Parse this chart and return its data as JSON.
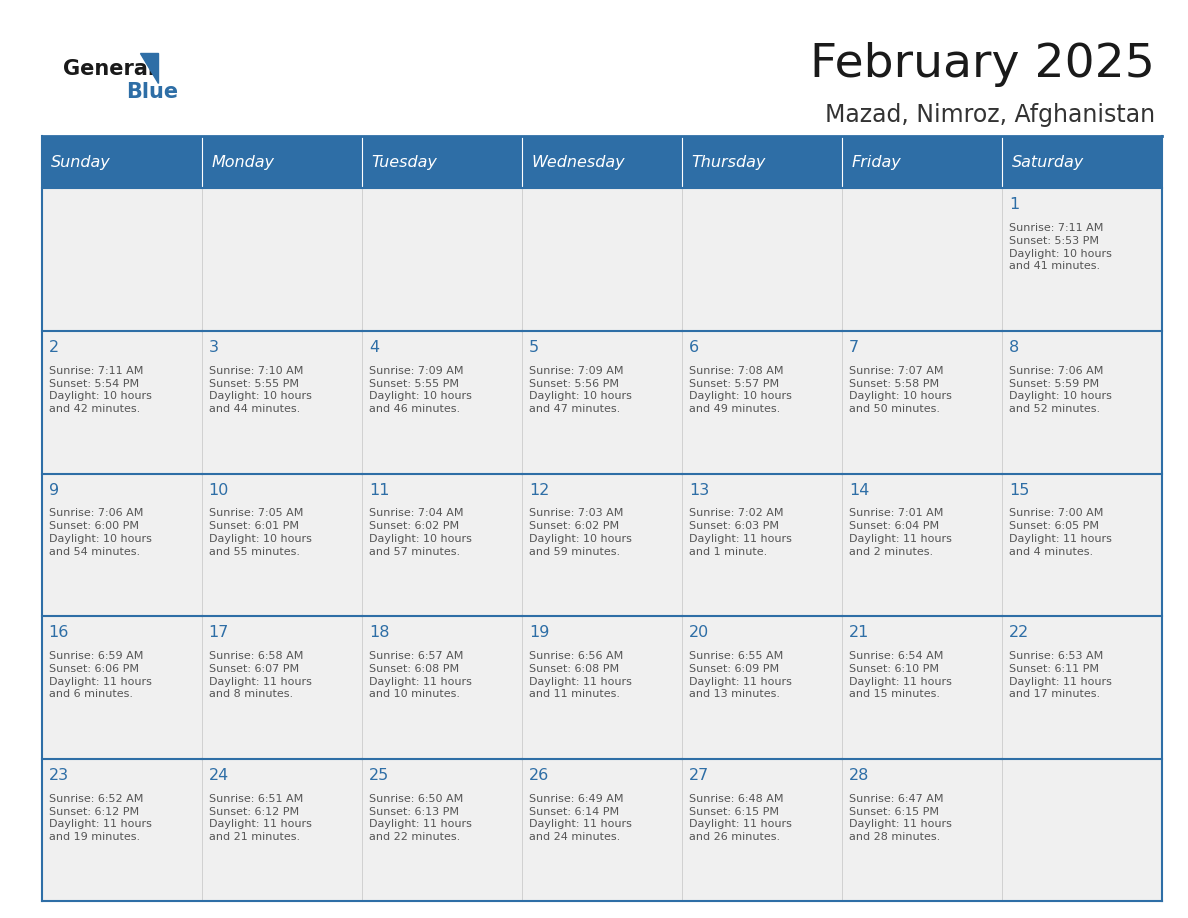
{
  "title": "February 2025",
  "subtitle": "Mazad, Nimroz, Afghanistan",
  "header_color": "#2E6EA6",
  "header_text_color": "#FFFFFF",
  "border_color": "#2E6EA6",
  "cell_bg_even": "#FFFFFF",
  "cell_bg_odd": "#F2F2F2",
  "title_color": "#1A1A1A",
  "subtitle_color": "#333333",
  "day_number_color": "#2E6EA6",
  "detail_color": "#555555",
  "grid_line_color": "#CCCCCC",
  "days_of_week": [
    "Sunday",
    "Monday",
    "Tuesday",
    "Wednesday",
    "Thursday",
    "Friday",
    "Saturday"
  ],
  "weeks": [
    [
      {
        "day": null,
        "sunrise": null,
        "sunset": null,
        "daylight": null
      },
      {
        "day": null,
        "sunrise": null,
        "sunset": null,
        "daylight": null
      },
      {
        "day": null,
        "sunrise": null,
        "sunset": null,
        "daylight": null
      },
      {
        "day": null,
        "sunrise": null,
        "sunset": null,
        "daylight": null
      },
      {
        "day": null,
        "sunrise": null,
        "sunset": null,
        "daylight": null
      },
      {
        "day": null,
        "sunrise": null,
        "sunset": null,
        "daylight": null
      },
      {
        "day": 1,
        "sunrise": "7:11 AM",
        "sunset": "5:53 PM",
        "daylight": "10 hours\nand 41 minutes."
      }
    ],
    [
      {
        "day": 2,
        "sunrise": "7:11 AM",
        "sunset": "5:54 PM",
        "daylight": "10 hours\nand 42 minutes."
      },
      {
        "day": 3,
        "sunrise": "7:10 AM",
        "sunset": "5:55 PM",
        "daylight": "10 hours\nand 44 minutes."
      },
      {
        "day": 4,
        "sunrise": "7:09 AM",
        "sunset": "5:55 PM",
        "daylight": "10 hours\nand 46 minutes."
      },
      {
        "day": 5,
        "sunrise": "7:09 AM",
        "sunset": "5:56 PM",
        "daylight": "10 hours\nand 47 minutes."
      },
      {
        "day": 6,
        "sunrise": "7:08 AM",
        "sunset": "5:57 PM",
        "daylight": "10 hours\nand 49 minutes."
      },
      {
        "day": 7,
        "sunrise": "7:07 AM",
        "sunset": "5:58 PM",
        "daylight": "10 hours\nand 50 minutes."
      },
      {
        "day": 8,
        "sunrise": "7:06 AM",
        "sunset": "5:59 PM",
        "daylight": "10 hours\nand 52 minutes."
      }
    ],
    [
      {
        "day": 9,
        "sunrise": "7:06 AM",
        "sunset": "6:00 PM",
        "daylight": "10 hours\nand 54 minutes."
      },
      {
        "day": 10,
        "sunrise": "7:05 AM",
        "sunset": "6:01 PM",
        "daylight": "10 hours\nand 55 minutes."
      },
      {
        "day": 11,
        "sunrise": "7:04 AM",
        "sunset": "6:02 PM",
        "daylight": "10 hours\nand 57 minutes."
      },
      {
        "day": 12,
        "sunrise": "7:03 AM",
        "sunset": "6:02 PM",
        "daylight": "10 hours\nand 59 minutes."
      },
      {
        "day": 13,
        "sunrise": "7:02 AM",
        "sunset": "6:03 PM",
        "daylight": "11 hours\nand 1 minute."
      },
      {
        "day": 14,
        "sunrise": "7:01 AM",
        "sunset": "6:04 PM",
        "daylight": "11 hours\nand 2 minutes."
      },
      {
        "day": 15,
        "sunrise": "7:00 AM",
        "sunset": "6:05 PM",
        "daylight": "11 hours\nand 4 minutes."
      }
    ],
    [
      {
        "day": 16,
        "sunrise": "6:59 AM",
        "sunset": "6:06 PM",
        "daylight": "11 hours\nand 6 minutes."
      },
      {
        "day": 17,
        "sunrise": "6:58 AM",
        "sunset": "6:07 PM",
        "daylight": "11 hours\nand 8 minutes."
      },
      {
        "day": 18,
        "sunrise": "6:57 AM",
        "sunset": "6:08 PM",
        "daylight": "11 hours\nand 10 minutes."
      },
      {
        "day": 19,
        "sunrise": "6:56 AM",
        "sunset": "6:08 PM",
        "daylight": "11 hours\nand 11 minutes."
      },
      {
        "day": 20,
        "sunrise": "6:55 AM",
        "sunset": "6:09 PM",
        "daylight": "11 hours\nand 13 minutes."
      },
      {
        "day": 21,
        "sunrise": "6:54 AM",
        "sunset": "6:10 PM",
        "daylight": "11 hours\nand 15 minutes."
      },
      {
        "day": 22,
        "sunrise": "6:53 AM",
        "sunset": "6:11 PM",
        "daylight": "11 hours\nand 17 minutes."
      }
    ],
    [
      {
        "day": 23,
        "sunrise": "6:52 AM",
        "sunset": "6:12 PM",
        "daylight": "11 hours\nand 19 minutes."
      },
      {
        "day": 24,
        "sunrise": "6:51 AM",
        "sunset": "6:12 PM",
        "daylight": "11 hours\nand 21 minutes."
      },
      {
        "day": 25,
        "sunrise": "6:50 AM",
        "sunset": "6:13 PM",
        "daylight": "11 hours\nand 22 minutes."
      },
      {
        "day": 26,
        "sunrise": "6:49 AM",
        "sunset": "6:14 PM",
        "daylight": "11 hours\nand 24 minutes."
      },
      {
        "day": 27,
        "sunrise": "6:48 AM",
        "sunset": "6:15 PM",
        "daylight": "11 hours\nand 26 minutes."
      },
      {
        "day": 28,
        "sunrise": "6:47 AM",
        "sunset": "6:15 PM",
        "daylight": "11 hours\nand 28 minutes."
      },
      {
        "day": null,
        "sunrise": null,
        "sunset": null,
        "daylight": null
      }
    ]
  ],
  "logo_general_color": "#1A1A1A",
  "logo_blue_color": "#2E6EA6",
  "logo_triangle_color": "#2E6EA6"
}
